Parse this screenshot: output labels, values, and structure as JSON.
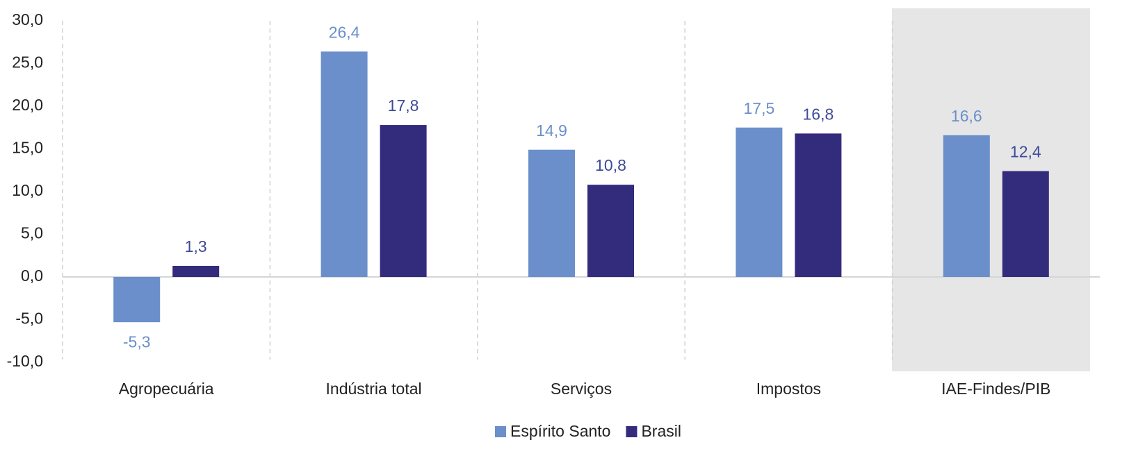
{
  "chart_data": {
    "type": "bar",
    "categories": [
      "Agropecuária",
      "Indústria total",
      "Serviços",
      "Impostos",
      "IAE-Findes/PIB"
    ],
    "series": [
      {
        "name": "Espírito Santo",
        "color": "#6a8fcb",
        "values": [
          -5.3,
          26.4,
          14.9,
          17.5,
          16.6
        ],
        "value_labels": [
          "-5,3",
          "26,4",
          "14,9",
          "17,5",
          "16,6"
        ]
      },
      {
        "name": "Brasil",
        "color": "#332b7c",
        "values": [
          1.3,
          17.8,
          10.8,
          16.8,
          12.4
        ],
        "value_labels": [
          "1,3",
          "17,8",
          "10,8",
          "16,8",
          "12,4"
        ]
      }
    ],
    "ylim": [
      -10,
      30
    ],
    "yticks": [
      {
        "value": -10,
        "label": "-10,0"
      },
      {
        "value": -5,
        "label": "-5,0"
      },
      {
        "value": 0,
        "label": "0,0"
      },
      {
        "value": 5,
        "label": "5,0"
      },
      {
        "value": 10,
        "label": "10,0"
      },
      {
        "value": 15,
        "label": "15,0"
      },
      {
        "value": 20,
        "label": "20,0"
      },
      {
        "value": 25,
        "label": "25,0"
      },
      {
        "value": 30,
        "label": "30,0"
      }
    ],
    "legend": "bottom"
  }
}
